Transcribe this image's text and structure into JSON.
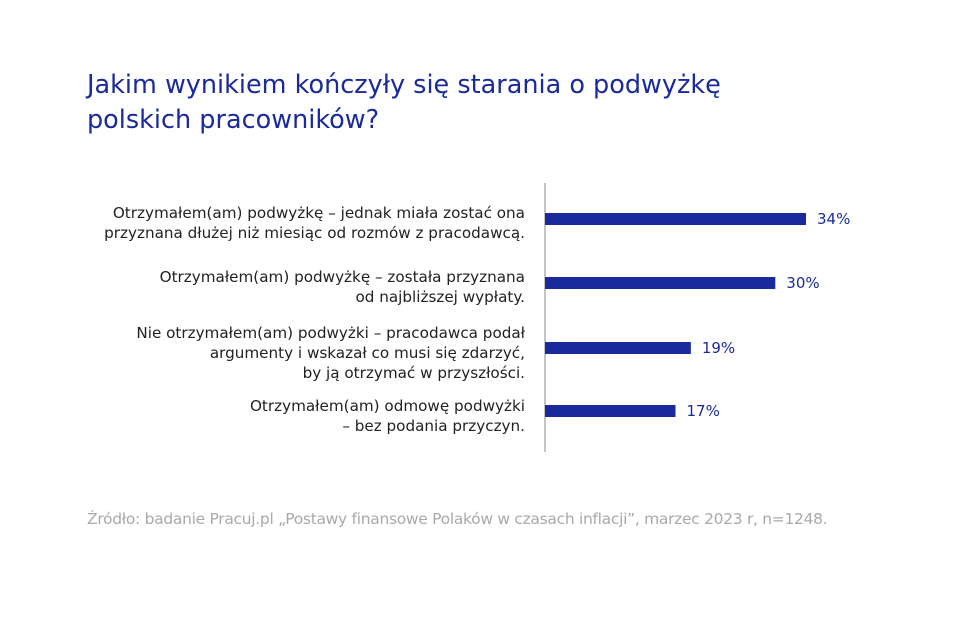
{
  "title_lines": [
    "Jakim wynikiem kończyły się starania o podwyżkę",
    "polskich pracowników?"
  ],
  "chart_data": {
    "type": "bar",
    "orientation": "horizontal",
    "title": "Jakim wynikiem kończyły się starania o podwyżkę polskich pracowników?",
    "categories": [
      [
        "Otrzymałem(am) podwyżkę – jednak miała zostać ona",
        "przyznana dłużej niż miesiąc od rozmów z pracodawcą."
      ],
      [
        "Otrzymałem(am) podwyżkę – została przyznana",
        "od najbliższej wypłaty."
      ],
      [
        "Nie otrzymałem(am) podwyżki – pracodawca podał",
        "argumenty i wskazał co musi się zdarzyć,",
        "by ją otrzymać w przyszłości."
      ],
      [
        "Otrzymałem(am) odmowę podwyżki",
        "– bez podania przyczyn."
      ]
    ],
    "values": [
      34,
      30,
      19,
      17
    ],
    "value_labels": [
      "34%",
      "30%",
      "19%",
      "17%"
    ],
    "unit": "%",
    "xlim": [
      0,
      34
    ],
    "grid": false,
    "bar_color": "#1a2a9c",
    "axis_color": "#b0b0b0"
  },
  "source_text": "Źródło: badanie Pracuj.pl „Postawy finansowe Polaków w czasach inflacji”, marzec 2023 r, n=1248."
}
